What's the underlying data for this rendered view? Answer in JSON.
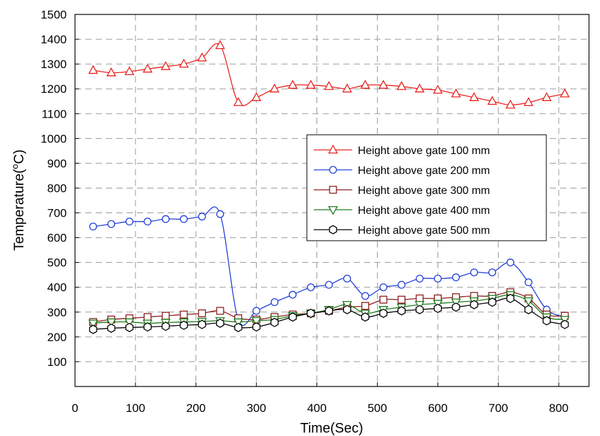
{
  "chart_data": {
    "type": "line",
    "title": "",
    "xlabel": "Time(Sec)",
    "ylabel_main": "Temperature(",
    "ylabel_sup": "o",
    "ylabel_tail": "C)",
    "xlim": [
      0,
      850
    ],
    "ylim": [
      0,
      1500
    ],
    "x_ticks": [
      0,
      100,
      200,
      300,
      400,
      500,
      600,
      700,
      800
    ],
    "y_ticks": [
      100,
      200,
      300,
      400,
      500,
      600,
      700,
      800,
      900,
      1000,
      1100,
      1200,
      1300,
      1400,
      1500
    ],
    "grid": true,
    "legend_position": "right-middle",
    "x": [
      30,
      60,
      90,
      120,
      150,
      180,
      210,
      240,
      270,
      300,
      330,
      360,
      390,
      420,
      450,
      480,
      510,
      540,
      570,
      600,
      630,
      660,
      690,
      720,
      750,
      780,
      810
    ],
    "series": [
      {
        "name": "Height above gate 100 mm",
        "color": "#e8201c",
        "marker": "triangle-up",
        "values": [
          1275,
          1265,
          1270,
          1280,
          1290,
          1300,
          1325,
          1375,
          1145,
          1165,
          1200,
          1215,
          1215,
          1210,
          1200,
          1215,
          1215,
          1210,
          1200,
          1195,
          1180,
          1165,
          1150,
          1135,
          1145,
          1165,
          1180
        ]
      },
      {
        "name": "Height above gate 200 mm",
        "color": "#1f3fd8",
        "marker": "circle",
        "values": [
          645,
          655,
          665,
          665,
          675,
          675,
          685,
          695,
          270,
          305,
          340,
          370,
          400,
          410,
          435,
          365,
          400,
          410,
          435,
          435,
          440,
          460,
          460,
          500,
          420,
          310,
          280
        ]
      },
      {
        "name": "Height above gate 300 mm",
        "color": "#8b1a1a",
        "marker": "square",
        "values": [
          260,
          270,
          275,
          280,
          285,
          290,
          295,
          305,
          275,
          270,
          280,
          290,
          295,
          305,
          320,
          325,
          350,
          350,
          355,
          355,
          360,
          365,
          365,
          380,
          355,
          290,
          285
        ]
      },
      {
        "name": "Height above gate 400 mm",
        "color": "#1a7a1a",
        "marker": "triangle-down",
        "values": [
          255,
          260,
          260,
          255,
          258,
          260,
          262,
          265,
          260,
          265,
          270,
          285,
          295,
          310,
          330,
          295,
          310,
          320,
          330,
          335,
          340,
          345,
          355,
          370,
          345,
          280,
          270
        ]
      },
      {
        "name": "Height above gate 500 mm",
        "color": "#000000",
        "marker": "hexagon",
        "values": [
          230,
          235,
          238,
          240,
          243,
          247,
          250,
          255,
          238,
          240,
          258,
          280,
          295,
          305,
          310,
          280,
          295,
          305,
          310,
          315,
          320,
          330,
          340,
          355,
          310,
          265,
          250
        ]
      }
    ]
  }
}
